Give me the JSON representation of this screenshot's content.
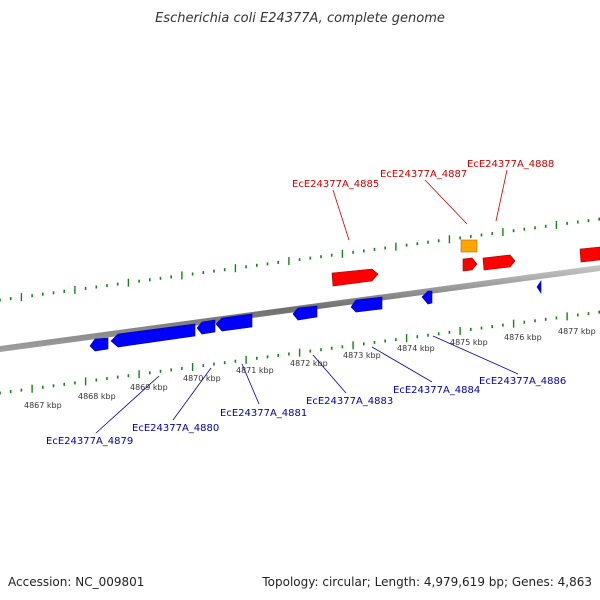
{
  "title": "Escherichia coli E24377A, complete genome",
  "colors": {
    "forward_gene": "#ff0000",
    "reverse_gene": "#0000ff",
    "rna_gene": "#ffa500",
    "forward_label": "#cc0000",
    "reverse_label": "#0000aa",
    "tick": "#1a7f1a",
    "backbone": "#808080"
  },
  "kbp_labels": [
    "4867 kbp",
    "4868 kbp",
    "4869 kbp",
    "4870 kbp",
    "4871 kbp",
    "4872 kbp",
    "4873 kbp",
    "4874 kbp",
    "4875 kbp",
    "4876 kbp",
    "4877 kbp"
  ],
  "forward_labels": [
    "EcE24377A_4885",
    "EcE24377A_4887",
    "EcE24377A_4888"
  ],
  "reverse_labels": [
    "EcE24377A_4879",
    "EcE24377A_4880",
    "EcE24377A_4881",
    "EcE24377A_4883",
    "EcE24377A_4884",
    "EcE24377A_4886"
  ],
  "footer": {
    "accession": "Accession: NC_009801",
    "summary": "Topology: circular; Length: 4,979,619 bp; Genes: 4,863"
  }
}
